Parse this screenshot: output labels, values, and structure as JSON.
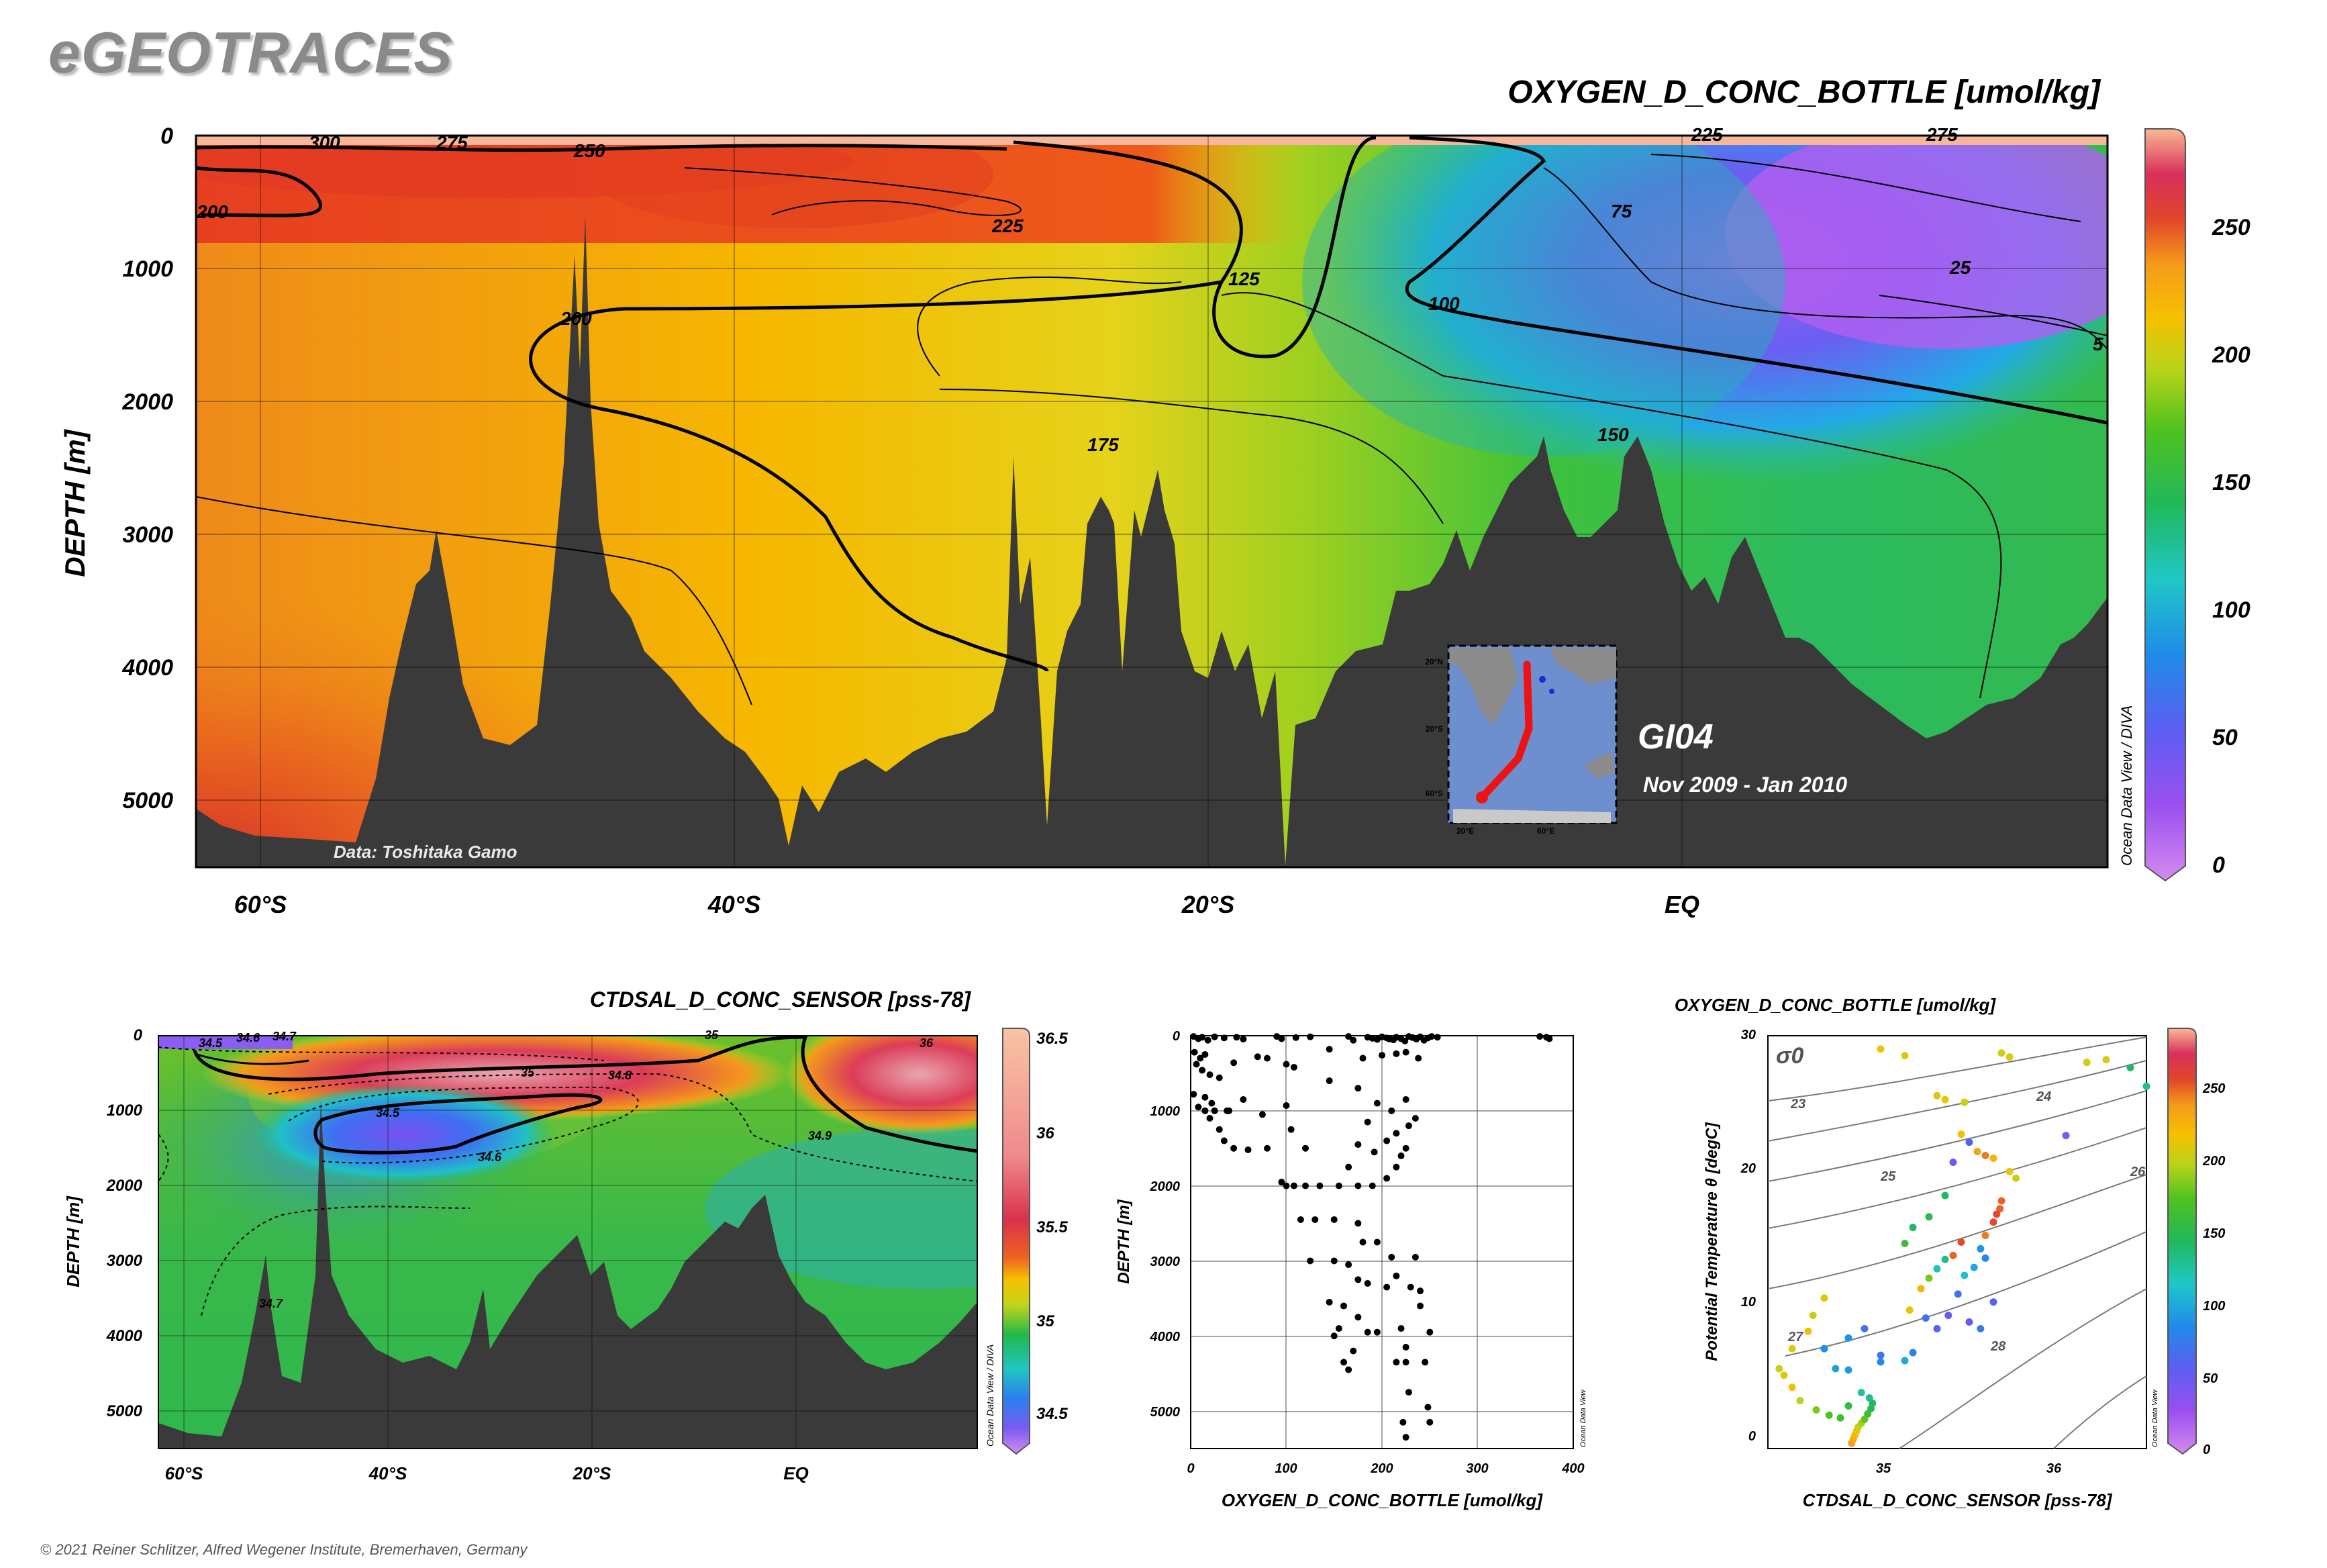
{
  "brand": "eGEOTRACES",
  "copyright": "© 2021 Reiner Schlitzer, Alfred Wegener Institute, Bremerhaven, Germany",
  "chart_data": [
    {
      "type": "heatmap",
      "title": "OXYGEN_D_CONC_BOTTLE [umol/kg]",
      "ylabel": "DEPTH [m]",
      "y_ticks": [
        "0",
        "1000",
        "2000",
        "3000",
        "4000",
        "5000"
      ],
      "x_ticks": [
        "60°S",
        "40°S",
        "20°S",
        "EQ"
      ],
      "xlim_lat": [
        -62.7,
        18
      ],
      "ylim_depth": [
        0,
        5500
      ],
      "colorbar_ticks": [
        "250",
        "200",
        "150",
        "100",
        "50",
        "0"
      ],
      "colorbar_range": [
        0,
        285
      ],
      "watermark": "Ocean Data View / DIVA",
      "data_credit": "Data: Toshitaka Gamo",
      "cruise": "GI04",
      "period": "Nov 2009 - Jan 2010",
      "inset_lon_ticks": [
        "20°E",
        "60°E"
      ],
      "inset_lat_ticks": [
        "20°N",
        "20°S",
        "60°S"
      ],
      "contour_labels": [
        "300",
        "275",
        "250",
        "200",
        "225",
        "225",
        "200",
        "250",
        "275",
        "75",
        "25",
        "125",
        "100",
        "5",
        "175",
        "150"
      ]
    },
    {
      "type": "heatmap",
      "title": "CTDSAL_D_CONC_SENSOR [pss-78]",
      "ylabel": "DEPTH [m]",
      "y_ticks": [
        "0",
        "1000",
        "2000",
        "3000",
        "4000",
        "5000"
      ],
      "x_ticks": [
        "60°S",
        "40°S",
        "20°S",
        "EQ"
      ],
      "colorbar_ticks": [
        "36.5",
        "36",
        "35.5",
        "35",
        "34.5"
      ],
      "colorbar_range": [
        34.3,
        36.6
      ],
      "watermark": "Ocean Data View / DIVA",
      "contour_labels": [
        "34.5",
        "34.6",
        "34.7",
        "35",
        "35",
        "36",
        "34.8",
        "34.5",
        "34.6",
        "34.9",
        "34.7"
      ]
    },
    {
      "type": "scatter",
      "xlabel": "OXYGEN_D_CONC_BOTTLE [umol/kg]",
      "ylabel": "DEPTH [m]",
      "x_ticks": [
        "0",
        "100",
        "200",
        "300",
        "400"
      ],
      "y_ticks": [
        "0",
        "1000",
        "2000",
        "3000",
        "4000",
        "5000"
      ],
      "xlim": [
        0,
        400
      ],
      "ylim": [
        0,
        5500
      ],
      "watermark": "Ocean Data View",
      "points": [
        [
          3,
          10
        ],
        [
          8,
          40
        ],
        [
          12,
          20
        ],
        [
          18,
          60
        ],
        [
          25,
          15
        ],
        [
          35,
          30
        ],
        [
          48,
          20
        ],
        [
          55,
          45
        ],
        [
          90,
          10
        ],
        [
          95,
          40
        ],
        [
          110,
          25
        ],
        [
          125,
          15
        ],
        [
          165,
          10
        ],
        [
          170,
          60
        ],
        [
          185,
          20
        ],
        [
          190,
          35
        ],
        [
          195,
          50
        ],
        [
          200,
          15
        ],
        [
          205,
          30
        ],
        [
          208,
          45
        ],
        [
          212,
          55
        ],
        [
          215,
          20
        ],
        [
          220,
          40
        ],
        [
          224,
          70
        ],
        [
          228,
          10
        ],
        [
          232,
          25
        ],
        [
          236,
          45
        ],
        [
          240,
          15
        ],
        [
          244,
          60
        ],
        [
          248,
          30
        ],
        [
          252,
          10
        ],
        [
          258,
          20
        ],
        [
          365,
          10
        ],
        [
          372,
          20
        ],
        [
          375,
          40
        ],
        [
          4,
          220
        ],
        [
          10,
          300
        ],
        [
          15,
          250
        ],
        [
          6,
          380
        ],
        [
          12,
          460
        ],
        [
          20,
          520
        ],
        [
          30,
          560
        ],
        [
          45,
          360
        ],
        [
          70,
          280
        ],
        [
          80,
          300
        ],
        [
          100,
          380
        ],
        [
          108,
          420
        ],
        [
          145,
          180
        ],
        [
          180,
          300
        ],
        [
          200,
          260
        ],
        [
          215,
          240
        ],
        [
          225,
          220
        ],
        [
          238,
          300
        ],
        [
          3,
          780
        ],
        [
          15,
          820
        ],
        [
          8,
          950
        ],
        [
          22,
          900
        ],
        [
          40,
          1000
        ],
        [
          55,
          850
        ],
        [
          75,
          1050
        ],
        [
          100,
          930
        ],
        [
          145,
          600
        ],
        [
          175,
          700
        ],
        [
          195,
          900
        ],
        [
          210,
          1000
        ],
        [
          225,
          850
        ],
        [
          235,
          1100
        ],
        [
          228,
          1200
        ],
        [
          215,
          1300
        ],
        [
          15,
          1000
        ],
        [
          25,
          1000
        ],
        [
          38,
          1000
        ],
        [
          20,
          1100
        ],
        [
          30,
          1250
        ],
        [
          35,
          1400
        ],
        [
          45,
          1500
        ],
        [
          60,
          1520
        ],
        [
          80,
          1500
        ],
        [
          105,
          1250
        ],
        [
          120,
          1500
        ],
        [
          185,
          1150
        ],
        [
          225,
          1500
        ],
        [
          95,
          1950
        ],
        [
          100,
          2000
        ],
        [
          108,
          2000
        ],
        [
          120,
          2000
        ],
        [
          135,
          2000
        ],
        [
          155,
          2000
        ],
        [
          165,
          1750
        ],
        [
          175,
          1450
        ],
        [
          192,
          1550
        ],
        [
          205,
          1400
        ],
        [
          220,
          1600
        ],
        [
          175,
          2000
        ],
        [
          190,
          2000
        ],
        [
          205,
          1900
        ],
        [
          215,
          1750
        ],
        [
          115,
          2450
        ],
        [
          130,
          2450
        ],
        [
          150,
          2450
        ],
        [
          175,
          2500
        ],
        [
          180,
          2750
        ],
        [
          195,
          2750
        ],
        [
          210,
          2950
        ],
        [
          235,
          2950
        ],
        [
          125,
          3000
        ],
        [
          150,
          3000
        ],
        [
          165,
          3050
        ],
        [
          175,
          3250
        ],
        [
          185,
          3300
        ],
        [
          205,
          3350
        ],
        [
          215,
          3200
        ],
        [
          230,
          3350
        ],
        [
          240,
          3400
        ],
        [
          145,
          3550
        ],
        [
          160,
          3600
        ],
        [
          175,
          3750
        ],
        [
          185,
          3950
        ],
        [
          195,
          3950
        ],
        [
          220,
          3900
        ],
        [
          240,
          3600
        ],
        [
          250,
          3950
        ],
        [
          155,
          3900
        ],
        [
          150,
          4000
        ],
        [
          170,
          4200
        ],
        [
          225,
          4150
        ],
        [
          160,
          4350
        ],
        [
          165,
          4450
        ],
        [
          215,
          4350
        ],
        [
          225,
          4350
        ],
        [
          245,
          4350
        ],
        [
          228,
          4750
        ],
        [
          248,
          4950
        ],
        [
          250,
          5150
        ],
        [
          222,
          5150
        ],
        [
          225,
          5350
        ]
      ]
    },
    {
      "type": "scatter",
      "title": "OXYGEN_D_CONC_BOTTLE [umol/kg]",
      "xlabel": "CTDSAL_D_CONC_SENSOR [pss-78]",
      "ylabel": "Potential Temperature θ [degC]",
      "x_ticks": [
        "35",
        "36"
      ],
      "y_ticks": [
        "0",
        "10",
        "20",
        "30"
      ],
      "xlim": [
        34.2,
        36.55
      ],
      "ylim": [
        -1,
        30
      ],
      "density_labels": [
        "σ0",
        "23",
        "24",
        "25",
        "26",
        "27",
        "28"
      ],
      "colorbar_ticks": [
        "250",
        "200",
        "150",
        "100",
        "50",
        "0"
      ],
      "watermark": "Ocean Data View",
      "points": [
        [
          34.72,
          -0.6,
          232
        ],
        [
          34.73,
          -0.3,
          225
        ],
        [
          34.74,
          0.0,
          218
        ],
        [
          34.75,
          0.3,
          210
        ],
        [
          34.76,
          0.6,
          200
        ],
        [
          34.78,
          0.9,
          190
        ],
        [
          34.8,
          1.2,
          175
        ],
        [
          34.82,
          1.6,
          160
        ],
        [
          34.84,
          2.0,
          145
        ],
        [
          34.85,
          2.4,
          140
        ],
        [
          34.83,
          2.8,
          130
        ],
        [
          34.78,
          3.2,
          125
        ],
        [
          34.3,
          4.5,
          205
        ],
        [
          34.35,
          3.6,
          215
        ],
        [
          34.4,
          2.6,
          195
        ],
        [
          34.5,
          1.9,
          180
        ],
        [
          34.58,
          1.5,
          170
        ],
        [
          34.65,
          1.3,
          160
        ],
        [
          34.7,
          2.2,
          150
        ],
        [
          34.27,
          5.0,
          200
        ],
        [
          34.62,
          5.0,
          95
        ],
        [
          34.55,
          6.5,
          88
        ],
        [
          34.7,
          7.3,
          90
        ],
        [
          34.8,
          8.0,
          70
        ],
        [
          34.9,
          6.0,
          70
        ],
        [
          34.9,
          5.5,
          85
        ],
        [
          34.7,
          4.9,
          92
        ],
        [
          34.55,
          10.3,
          205
        ],
        [
          34.45,
          7.8,
          215
        ],
        [
          34.35,
          6.5,
          205
        ],
        [
          34.48,
          9.0,
          200
        ],
        [
          35.05,
          5.6,
          100
        ],
        [
          35.1,
          6.2,
          80
        ],
        [
          35.18,
          8.8,
          70
        ],
        [
          35.25,
          8.0,
          60
        ],
        [
          35.32,
          9.0,
          50
        ],
        [
          35.38,
          10.6,
          70
        ],
        [
          35.45,
          8.5,
          55
        ],
        [
          35.52,
          8.0,
          75
        ],
        [
          35.6,
          10.0,
          60
        ],
        [
          35.08,
          9.4,
          210
        ],
        [
          35.15,
          11.0,
          220
        ],
        [
          35.2,
          11.8,
          180
        ],
        [
          35.25,
          12.5,
          120
        ],
        [
          35.3,
          13.2,
          130
        ],
        [
          35.35,
          13.5,
          245
        ],
        [
          35.4,
          14.5,
          250
        ],
        [
          35.42,
          12.0,
          110
        ],
        [
          35.48,
          12.6,
          100
        ],
        [
          35.52,
          14.0,
          90
        ],
        [
          35.55,
          15.0,
          240
        ],
        [
          35.6,
          16.0,
          250
        ],
        [
          35.64,
          17.0,
          245
        ],
        [
          35.65,
          17.6,
          245
        ],
        [
          35.62,
          16.6,
          250
        ],
        [
          35.55,
          13.3,
          80
        ],
        [
          35.1,
          15.6,
          140
        ],
        [
          35.05,
          14.4,
          160
        ],
        [
          35.2,
          16.4,
          150
        ],
        [
          35.3,
          18.0,
          140
        ],
        [
          35.35,
          20.5,
          50
        ],
        [
          35.45,
          22.0,
          60
        ],
        [
          35.6,
          20.8,
          220
        ],
        [
          35.4,
          22.6,
          215
        ],
        [
          35.5,
          21.3,
          230
        ],
        [
          35.55,
          21.0,
          240
        ],
        [
          35.7,
          19.8,
          210
        ],
        [
          35.74,
          19.3,
          200
        ],
        [
          36.05,
          22.5,
          40
        ],
        [
          35.25,
          25.5,
          205
        ],
        [
          35.3,
          25.2,
          210
        ],
        [
          35.42,
          25.0,
          200
        ],
        [
          34.9,
          29.0,
          210
        ],
        [
          35.05,
          28.5,
          205
        ],
        [
          35.65,
          28.7,
          200
        ],
        [
          35.7,
          28.4,
          205
        ],
        [
          36.3,
          28.2,
          205
        ],
        [
          36.18,
          28.0,
          205
        ],
        [
          36.45,
          27.6,
          140
        ],
        [
          36.55,
          26.2,
          130
        ]
      ]
    }
  ]
}
